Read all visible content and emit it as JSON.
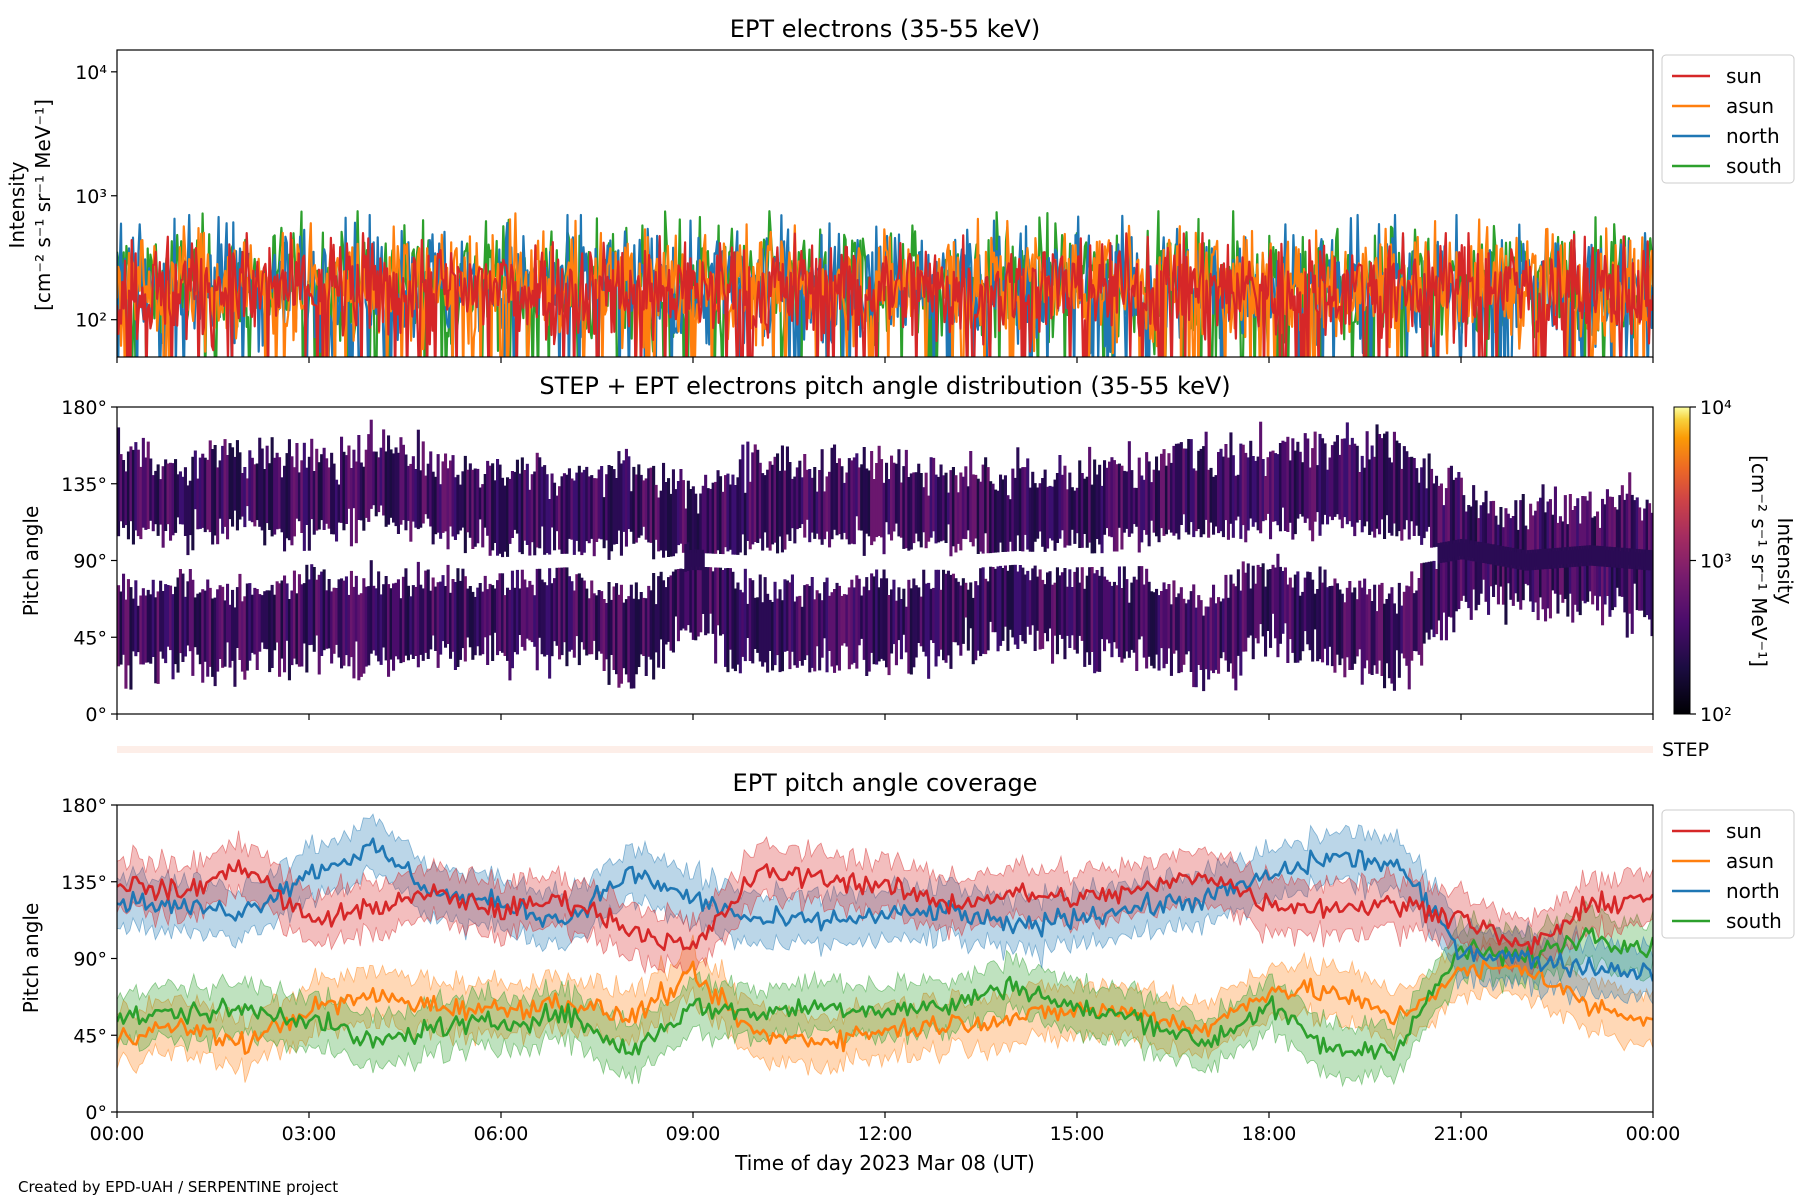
{
  "footer_text": "Created by EPD-UAH / SERPENTINE project",
  "xlabel": "Time of day 2023 Mar 08 (UT)",
  "x_ticks": [
    "00:00",
    "03:00",
    "06:00",
    "09:00",
    "12:00",
    "15:00",
    "18:00",
    "21:00",
    "00:00"
  ],
  "colors": {
    "sun": "#d62728",
    "asun": "#ff7f0e",
    "north": "#1f77b4",
    "south": "#2ca02c"
  },
  "chart_data": [
    {
      "id": "intensity",
      "type": "line",
      "title": "EPT electrons (35-55 keV)",
      "ylabel_line1": "Intensity",
      "ylabel_line2": "[cm⁻² s⁻¹ sr⁻¹ MeV⁻¹]",
      "yscale": "log",
      "ylim": [
        50,
        15000
      ],
      "y_ticks": [
        {
          "value": 100,
          "label": "10²"
        },
        {
          "value": 1000,
          "label": "10³"
        },
        {
          "value": 10000,
          "label": "10⁴"
        }
      ],
      "xlim_hours": [
        0,
        24
      ],
      "legend": [
        "sun",
        "asun",
        "north",
        "south"
      ],
      "legend_position": "outside-right-top",
      "series": [
        {
          "name": "south",
          "typical": 200,
          "spread": 0.35,
          "max": 750
        },
        {
          "name": "north",
          "typical": 190,
          "spread": 0.35,
          "max": 700
        },
        {
          "name": "asun",
          "typical": 190,
          "spread": 0.33,
          "max": 720
        },
        {
          "name": "sun",
          "typical": 180,
          "spread": 0.3,
          "max": 500
        }
      ]
    },
    {
      "id": "pad",
      "type": "heatmap",
      "title": "STEP + EPT electrons pitch angle distribution (35-55 keV)",
      "ylabel": "Pitch angle",
      "ylim": [
        0,
        180
      ],
      "y_ticks": [
        "0°",
        "45°",
        "90°",
        "135°",
        "180°"
      ],
      "colorbar_label_line1": "Intensity",
      "colorbar_label_line2": "[cm⁻² s⁻¹ sr⁻¹ MeV⁻¹]",
      "colorbar_range": [
        100,
        10000
      ],
      "colorbar_scale": "log",
      "colorbar_ticks": [
        "10²",
        "10³",
        "10⁴"
      ],
      "colormap": "inferno",
      "step_strip_label": "STEP"
    },
    {
      "id": "coverage",
      "type": "area",
      "title": "EPT pitch angle coverage",
      "ylabel": "Pitch angle",
      "ylim": [
        0,
        180
      ],
      "y_ticks": [
        "0°",
        "45°",
        "90°",
        "135°",
        "180°"
      ],
      "legend": [
        "sun",
        "asun",
        "north",
        "south"
      ],
      "legend_position": "outside-right-top",
      "x_hours": [
        0,
        1,
        2,
        3,
        4,
        5,
        6,
        7,
        8,
        9,
        10,
        11,
        12,
        13,
        14,
        15,
        16,
        17,
        18,
        19,
        20,
        21,
        22,
        23,
        24
      ],
      "series": [
        {
          "name": "sun",
          "values": [
            135,
            128,
            145,
            112,
            120,
            128,
            118,
            125,
            108,
            95,
            140,
            138,
            132,
            122,
            128,
            125,
            130,
            140,
            122,
            120,
            122,
            115,
            95,
            120,
            128
          ],
          "band": 15
        },
        {
          "name": "north",
          "values": [
            125,
            120,
            118,
            140,
            155,
            128,
            122,
            112,
            140,
            125,
            112,
            112,
            115,
            118,
            108,
            115,
            120,
            125,
            138,
            150,
            145,
            95,
            90,
            85,
            82
          ],
          "band": 15
        },
        {
          "name": "asun",
          "values": [
            45,
            50,
            40,
            60,
            68,
            62,
            60,
            65,
            55,
            80,
            45,
            42,
            48,
            52,
            55,
            60,
            58,
            48,
            72,
            70,
            55,
            82,
            85,
            62,
            55
          ],
          "band": 15
        },
        {
          "name": "south",
          "values": [
            55,
            58,
            60,
            55,
            40,
            50,
            52,
            58,
            35,
            62,
            58,
            62,
            60,
            62,
            75,
            60,
            55,
            40,
            62,
            35,
            38,
            95,
            90,
            105,
            95
          ],
          "band": 15
        }
      ]
    }
  ]
}
